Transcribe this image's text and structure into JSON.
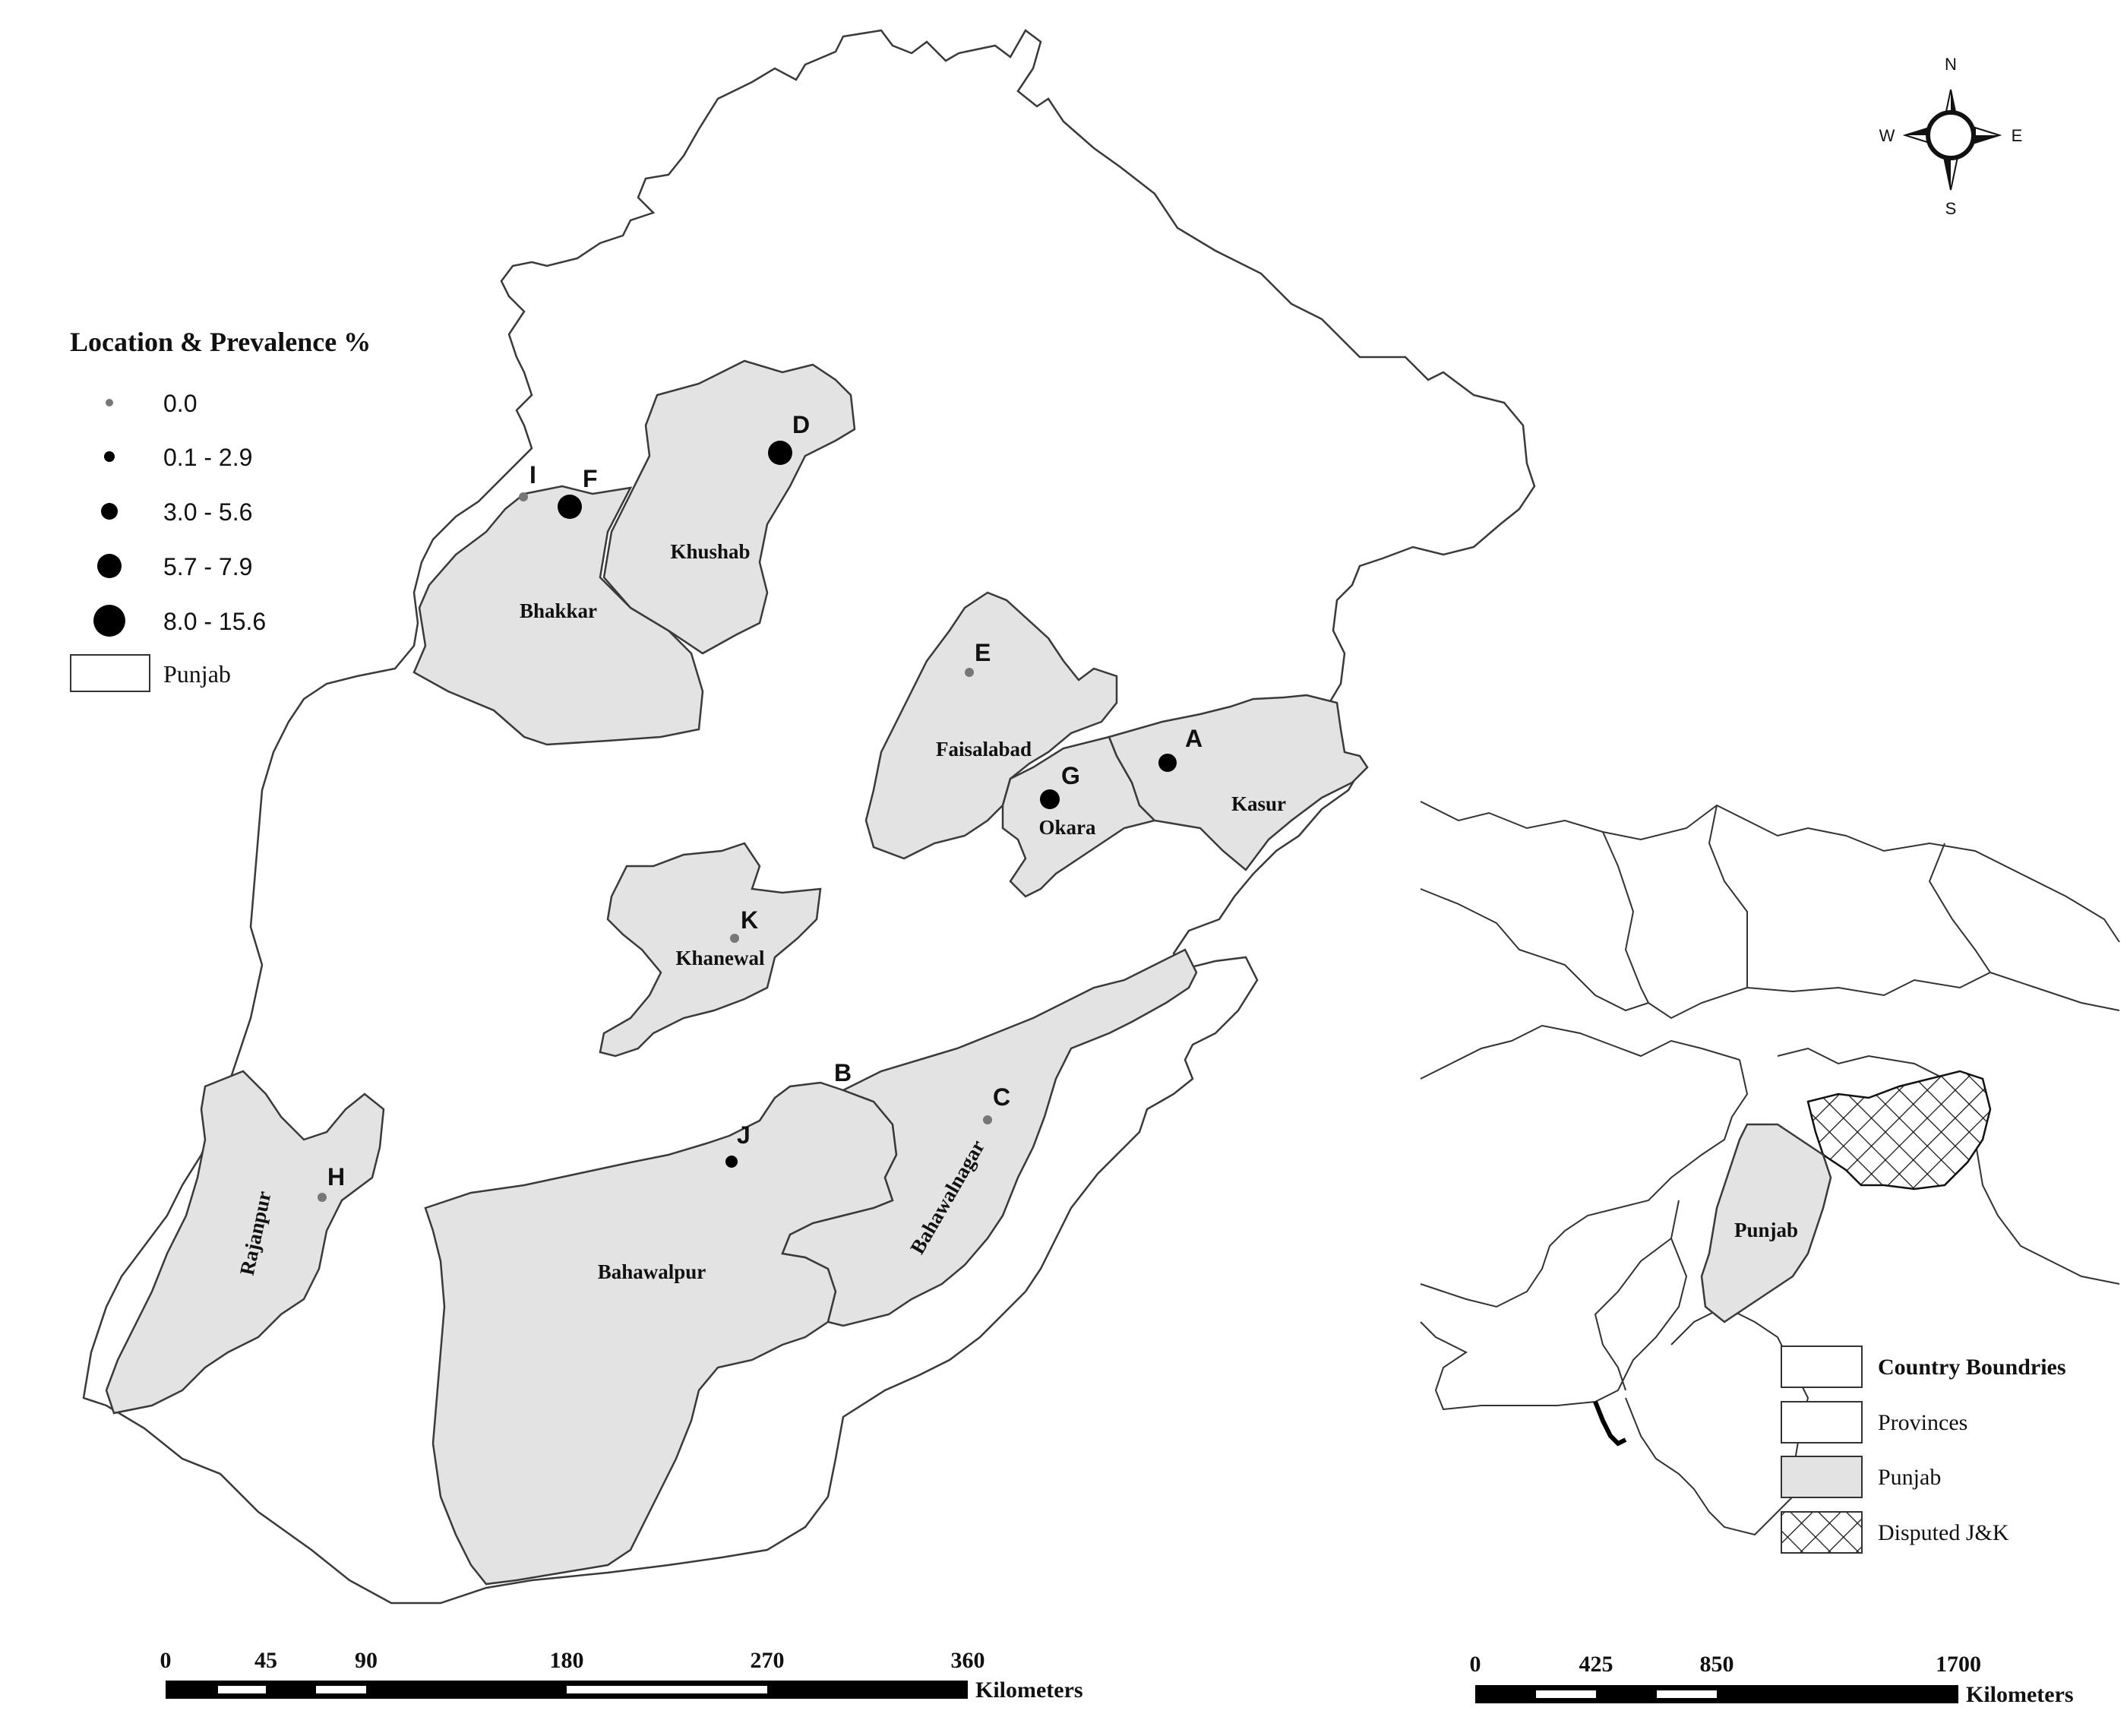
{
  "legend": {
    "title": "Location & Prevalence %",
    "classes": [
      {
        "label": "0.0",
        "color": "#777777"
      },
      {
        "label": "0.1 - 2.9",
        "color": "#000000"
      },
      {
        "label": "3.0 - 5.6",
        "color": "#000000"
      },
      {
        "label": "5.7 - 7.9",
        "color": "#000000"
      },
      {
        "label": "8.0 - 15.6",
        "color": "#000000"
      }
    ],
    "region_label": "Punjab"
  },
  "districts": {
    "bhakkar": "Bhakkar",
    "khushab": "Khushab",
    "faisalabad": "Faisalabad",
    "okara": "Okara",
    "kasur": "Kasur",
    "khanewal": "Khanewal",
    "rajanpur": "Rajanpur",
    "bahawalpur": "Bahawalpur",
    "bahawalnagar": "Bahawalnagar"
  },
  "points": {
    "A": "A",
    "B": "B",
    "C": "C",
    "D": "D",
    "E": "E",
    "F": "F",
    "G": "G",
    "H": "H",
    "I": "I",
    "J": "J",
    "K": "K"
  },
  "compass": {
    "n": "N",
    "s": "S",
    "e": "E",
    "w": "W"
  },
  "scale_main": {
    "ticks": [
      "0",
      "45",
      "90",
      "180",
      "270",
      "360"
    ],
    "unit": "Kilometers"
  },
  "scale_inset": {
    "ticks": [
      "0",
      "425",
      "850",
      "1700"
    ],
    "unit": "Kilometers"
  },
  "inset": {
    "province_label": "Punjab",
    "legend": [
      {
        "label": "Country Boundries"
      },
      {
        "label": "Provinces"
      },
      {
        "label": "Punjab"
      },
      {
        "label": "Disputed J&K"
      }
    ]
  },
  "colors": {
    "district_fill": "#e3e3e3",
    "zero_point": "#777777",
    "point": "#000000"
  }
}
